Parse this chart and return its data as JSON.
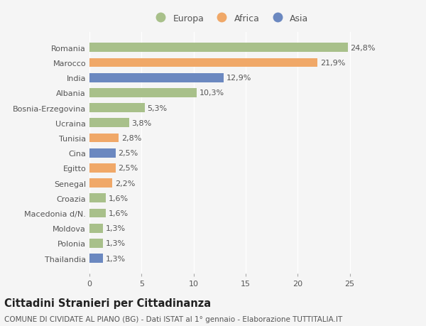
{
  "countries": [
    "Romania",
    "Marocco",
    "India",
    "Albania",
    "Bosnia-Erzegovina",
    "Ucraina",
    "Tunisia",
    "Cina",
    "Egitto",
    "Senegal",
    "Croazia",
    "Macedonia d/N.",
    "Moldova",
    "Polonia",
    "Thailandia"
  ],
  "values": [
    24.8,
    21.9,
    12.9,
    10.3,
    5.3,
    3.8,
    2.8,
    2.5,
    2.5,
    2.2,
    1.6,
    1.6,
    1.3,
    1.3,
    1.3
  ],
  "labels": [
    "24,8%",
    "21,9%",
    "12,9%",
    "10,3%",
    "5,3%",
    "3,8%",
    "2,8%",
    "2,5%",
    "2,5%",
    "2,2%",
    "1,6%",
    "1,6%",
    "1,3%",
    "1,3%",
    "1,3%"
  ],
  "continents": [
    "Europa",
    "Africa",
    "Asia",
    "Europa",
    "Europa",
    "Europa",
    "Africa",
    "Asia",
    "Africa",
    "Africa",
    "Europa",
    "Europa",
    "Europa",
    "Europa",
    "Asia"
  ],
  "colors": {
    "Europa": "#a8c08a",
    "Africa": "#f0a868",
    "Asia": "#6b88c0"
  },
  "bg_color": "#f5f5f5",
  "title": "Cittadini Stranieri per Cittadinanza",
  "subtitle": "COMUNE DI CIVIDATE AL PIANO (BG) - Dati ISTAT al 1° gennaio - Elaborazione TUTTITALIA.IT",
  "xlim": [
    0,
    27
  ],
  "bar_height": 0.6,
  "grid_color": "#ffffff",
  "label_fontsize": 8,
  "tick_fontsize": 8,
  "ytick_fontsize": 8,
  "title_fontsize": 10.5,
  "subtitle_fontsize": 7.5,
  "legend_fontsize": 9
}
